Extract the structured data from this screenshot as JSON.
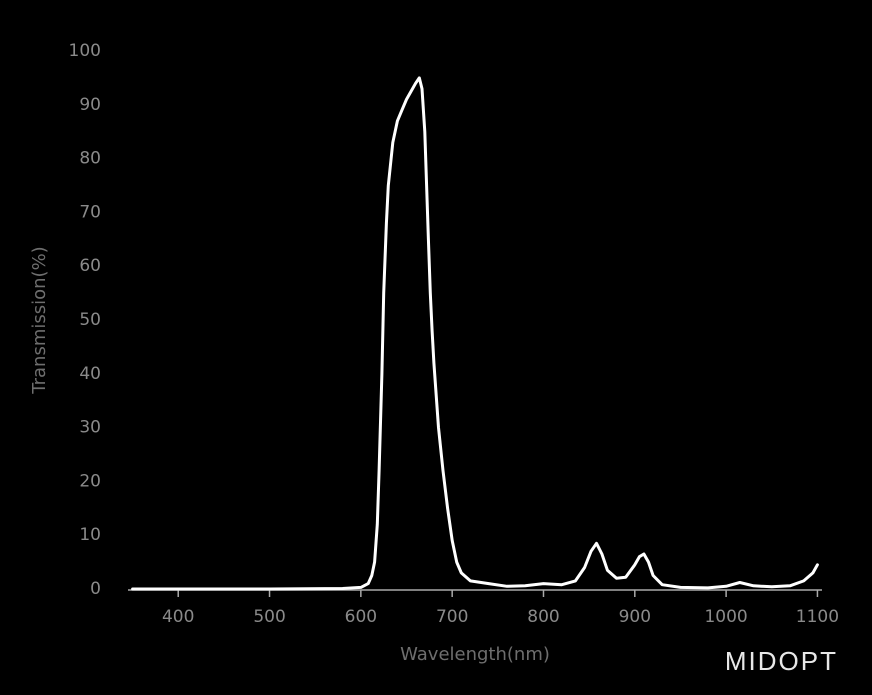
{
  "chart_data": {
    "type": "line",
    "x_label": "Wavelength(nm)",
    "y_label": "Transmission(%)",
    "x": [
      350,
      400,
      500,
      580,
      600,
      608,
      612,
      615,
      618,
      620,
      623,
      625,
      628,
      630,
      635,
      640,
      645,
      650,
      655,
      660,
      664,
      667,
      670,
      672,
      674,
      676,
      678,
      680,
      685,
      690,
      695,
      700,
      705,
      710,
      720,
      740,
      760,
      780,
      800,
      820,
      835,
      845,
      852,
      858,
      864,
      870,
      880,
      890,
      900,
      905,
      910,
      915,
      920,
      930,
      950,
      980,
      1000,
      1015,
      1030,
      1050,
      1070,
      1085,
      1095,
      1100
    ],
    "values": [
      0,
      0,
      0,
      0.1,
      0.3,
      1,
      2.5,
      5,
      12,
      22,
      40,
      55,
      68,
      75,
      83,
      87,
      89,
      91,
      92.5,
      94,
      95,
      93,
      85,
      75,
      65,
      55,
      48,
      42,
      30,
      22,
      15,
      9,
      5,
      3,
      1.5,
      1,
      0.5,
      0.6,
      1,
      0.8,
      1.5,
      4,
      7,
      8.5,
      6.5,
      3.5,
      2,
      2.2,
      4.5,
      6,
      6.5,
      5,
      2.5,
      0.8,
      0.3,
      0.2,
      0.5,
      1.2,
      0.6,
      0.4,
      0.6,
      1.5,
      3,
      4.5
    ],
    "color": "#ffffff",
    "xlim": [
      345,
      1105
    ],
    "ylim": [
      0,
      100
    ],
    "xticks": [
      400,
      500,
      600,
      700,
      800,
      900,
      1000,
      1100
    ],
    "yticks": [
      0,
      10,
      20,
      30,
      40,
      50,
      60,
      70,
      80,
      90,
      100
    ],
    "logo": "MIDOPT"
  }
}
